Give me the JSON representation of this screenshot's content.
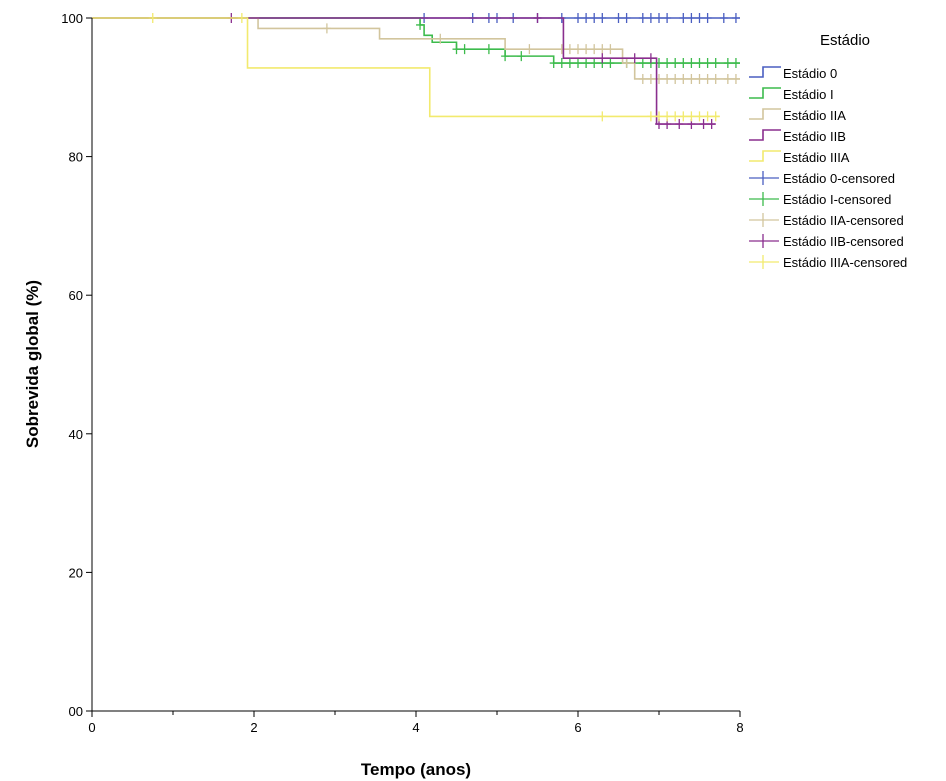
{
  "chart_data": {
    "type": "line",
    "subtype": "kaplan-meier",
    "xlabel": "Tempo (anos)",
    "ylabel": "Sobrevida global (%)",
    "xlim": [
      0,
      8
    ],
    "ylim": [
      0,
      100
    ],
    "x_ticks": [
      0,
      2,
      4,
      6,
      8
    ],
    "x_tick_labels": [
      "0",
      "2",
      "4",
      "6",
      "8"
    ],
    "y_ticks": [
      0,
      20,
      40,
      60,
      80,
      100
    ],
    "y_tick_labels": [
      "00",
      "20",
      "40",
      "60",
      "80",
      "100"
    ],
    "grid": false,
    "legend": {
      "title": "Estádio",
      "position": "right",
      "entries": [
        {
          "label": "Estádio 0",
          "series": 0,
          "kind": "line"
        },
        {
          "label": "Estádio I",
          "series": 1,
          "kind": "line"
        },
        {
          "label": "Estádio IIA",
          "series": 2,
          "kind": "line"
        },
        {
          "label": "Estádio IIB",
          "series": 3,
          "kind": "line"
        },
        {
          "label": "Estádio IIIA",
          "series": 4,
          "kind": "line"
        },
        {
          "label": "Estádio 0-censored",
          "series": 0,
          "kind": "censor"
        },
        {
          "label": "Estádio I-censored",
          "series": 1,
          "kind": "censor"
        },
        {
          "label": "Estádio IIA-censored",
          "series": 2,
          "kind": "censor"
        },
        {
          "label": "Estádio IIB-censored",
          "series": 3,
          "kind": "censor"
        },
        {
          "label": "Estádio IIIA-censored",
          "series": 4,
          "kind": "censor"
        }
      ]
    },
    "series": [
      {
        "name": "Estádio 0",
        "color": "#4a5fc1",
        "steps": [
          [
            0,
            100
          ],
          [
            8,
            100
          ]
        ],
        "censored": [
          [
            4.1,
            100
          ],
          [
            4.7,
            100
          ],
          [
            4.9,
            100
          ],
          [
            5.0,
            100
          ],
          [
            5.2,
            100
          ],
          [
            5.5,
            100
          ],
          [
            5.8,
            100
          ],
          [
            6.0,
            100
          ],
          [
            6.1,
            100
          ],
          [
            6.2,
            100
          ],
          [
            6.3,
            100
          ],
          [
            6.5,
            100
          ],
          [
            6.6,
            100
          ],
          [
            6.8,
            100
          ],
          [
            6.9,
            100
          ],
          [
            7.0,
            100
          ],
          [
            7.1,
            100
          ],
          [
            7.3,
            100
          ],
          [
            7.4,
            100
          ],
          [
            7.5,
            100
          ],
          [
            7.6,
            100
          ],
          [
            7.8,
            100
          ],
          [
            7.95,
            100
          ]
        ]
      },
      {
        "name": "Estádio I",
        "color": "#3cbb4c",
        "steps": [
          [
            0,
            100
          ],
          [
            4.02,
            100
          ],
          [
            4.05,
            99
          ],
          [
            4.1,
            97.5
          ],
          [
            4.2,
            96.5
          ],
          [
            4.5,
            95.5
          ],
          [
            5.1,
            94.5
          ],
          [
            5.7,
            93.5
          ],
          [
            8.0,
            93.5
          ]
        ],
        "censored": [
          [
            4.05,
            99
          ],
          [
            4.5,
            95.5
          ],
          [
            4.6,
            95.5
          ],
          [
            4.9,
            95.5
          ],
          [
            5.1,
            94.5
          ],
          [
            5.3,
            94.5
          ],
          [
            5.7,
            93.5
          ],
          [
            5.8,
            93.5
          ],
          [
            5.9,
            93.5
          ],
          [
            6.0,
            93.5
          ],
          [
            6.1,
            93.5
          ],
          [
            6.2,
            93.5
          ],
          [
            6.3,
            93.5
          ],
          [
            6.4,
            93.5
          ],
          [
            6.6,
            93.5
          ],
          [
            6.8,
            93.5
          ],
          [
            6.9,
            93.5
          ],
          [
            7.0,
            93.5
          ],
          [
            7.1,
            93.5
          ],
          [
            7.2,
            93.5
          ],
          [
            7.3,
            93.5
          ],
          [
            7.4,
            93.5
          ],
          [
            7.5,
            93.5
          ],
          [
            7.6,
            93.5
          ],
          [
            7.7,
            93.5
          ],
          [
            7.85,
            93.5
          ],
          [
            7.95,
            93.5
          ]
        ]
      },
      {
        "name": "Estádio IIA",
        "color": "#d2c59d",
        "steps": [
          [
            0,
            100
          ],
          [
            2.05,
            100
          ],
          [
            2.05,
            98.5
          ],
          [
            3.55,
            98.5
          ],
          [
            3.55,
            97
          ],
          [
            5.1,
            97
          ],
          [
            5.1,
            95.5
          ],
          [
            6.55,
            95.5
          ],
          [
            6.55,
            93.5
          ],
          [
            6.7,
            93.5
          ],
          [
            6.7,
            91.2
          ],
          [
            8.0,
            91.2
          ]
        ],
        "censored": [
          [
            2.9,
            98.5
          ],
          [
            4.3,
            97
          ],
          [
            5.4,
            95.5
          ],
          [
            5.8,
            95.5
          ],
          [
            5.9,
            95.5
          ],
          [
            6.0,
            95.5
          ],
          [
            6.1,
            95.5
          ],
          [
            6.2,
            95.5
          ],
          [
            6.3,
            95.5
          ],
          [
            6.4,
            95.5
          ],
          [
            6.6,
            93.5
          ],
          [
            6.8,
            91.2
          ],
          [
            6.9,
            91.2
          ],
          [
            7.0,
            91.2
          ],
          [
            7.1,
            91.2
          ],
          [
            7.2,
            91.2
          ],
          [
            7.3,
            91.2
          ],
          [
            7.4,
            91.2
          ],
          [
            7.5,
            91.2
          ],
          [
            7.6,
            91.2
          ],
          [
            7.7,
            91.2
          ],
          [
            7.85,
            91.2
          ],
          [
            7.95,
            91.2
          ]
        ]
      },
      {
        "name": "Estádio IIB",
        "color": "#8a2e8e",
        "steps": [
          [
            0,
            100
          ],
          [
            5.82,
            100
          ],
          [
            5.82,
            94.2
          ],
          [
            6.97,
            94.2
          ],
          [
            6.97,
            84.7
          ],
          [
            7.7,
            84.7
          ]
        ],
        "censored": [
          [
            1.72,
            100
          ],
          [
            5.5,
            100
          ],
          [
            6.3,
            94.2
          ],
          [
            6.7,
            94.2
          ],
          [
            6.9,
            94.2
          ],
          [
            7.0,
            84.7
          ],
          [
            7.1,
            84.7
          ],
          [
            7.25,
            84.7
          ],
          [
            7.4,
            84.7
          ],
          [
            7.55,
            84.7
          ],
          [
            7.65,
            84.7
          ]
        ]
      },
      {
        "name": "Estádio IIIA",
        "color": "#f2ea6e",
        "steps": [
          [
            0,
            100
          ],
          [
            1.92,
            100
          ],
          [
            1.92,
            92.8
          ],
          [
            4.17,
            92.8
          ],
          [
            4.17,
            85.8
          ],
          [
            7.75,
            85.8
          ]
        ],
        "censored": [
          [
            0.75,
            100
          ],
          [
            1.85,
            100
          ],
          [
            6.3,
            85.8
          ],
          [
            6.9,
            85.8
          ],
          [
            7.0,
            85.8
          ],
          [
            7.1,
            85.8
          ],
          [
            7.2,
            85.8
          ],
          [
            7.3,
            85.8
          ],
          [
            7.4,
            85.8
          ],
          [
            7.5,
            85.8
          ],
          [
            7.6,
            85.8
          ],
          [
            7.7,
            85.8
          ]
        ]
      }
    ]
  }
}
